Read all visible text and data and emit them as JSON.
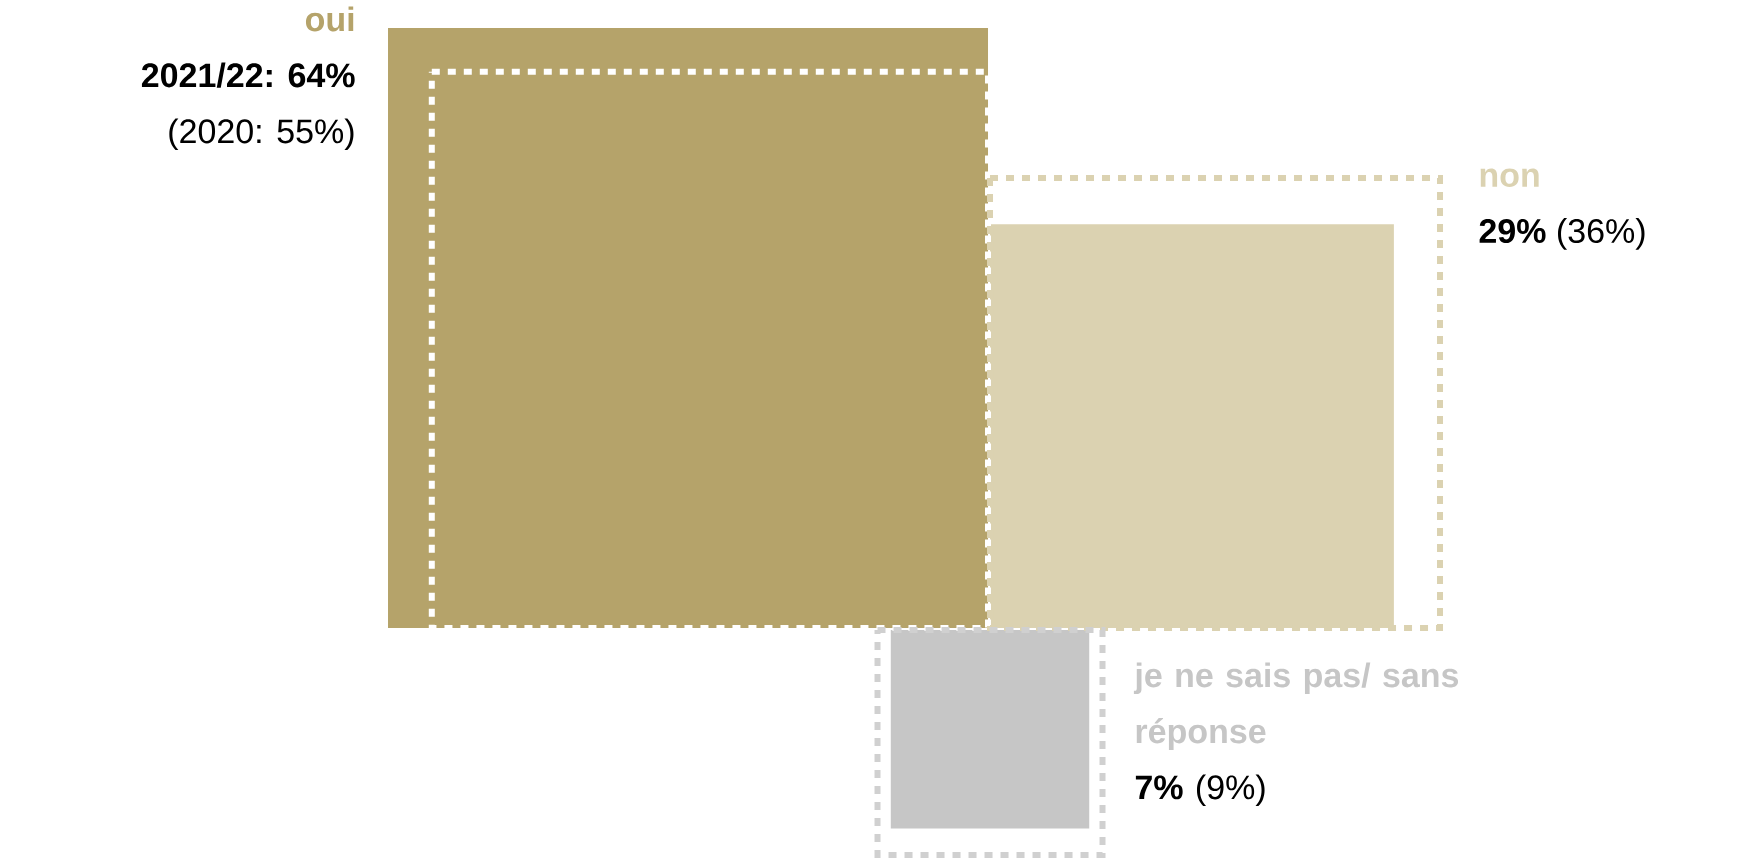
{
  "chart_data": {
    "type": "other",
    "categories": [
      "oui",
      "non",
      "je ne sais pas/ sans réponse"
    ],
    "series": [
      {
        "colors": [
          "#b5a36a",
          "#dbd2b1",
          "#c6c6c6"
        ],
        "line_style": "solid",
        "values": [
          64,
          29,
          7
        ],
        "value_labels": [
          "2021/22: 64%",
          "29%",
          "7%"
        ]
      },
      {
        "colors": [
          "#ffffff",
          "#dbd2b1",
          "#d0d0d0"
        ],
        "line_style": "dotted",
        "values": [
          55,
          36,
          9
        ],
        "value_labels": [
          "(2020: 55%)",
          "(36%)",
          "(9%)"
        ]
      }
    ]
  }
}
